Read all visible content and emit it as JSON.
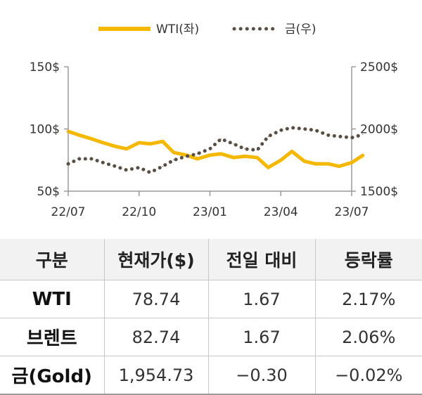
{
  "chart_data": {
    "type": "line",
    "legend": {
      "placement": "top-center",
      "entries": [
        {
          "label": "WTI(좌)",
          "color": "#f5b800",
          "style": "solid"
        },
        {
          "label": "금(우)",
          "color": "#5a4f44",
          "style": "dotted"
        }
      ]
    },
    "x_ticks": [
      "22/07",
      "22/10",
      "23/01",
      "23/04",
      "23/07"
    ],
    "y_left": {
      "ticks": [
        "150$",
        "100$",
        "50$"
      ],
      "range": [
        50,
        150
      ]
    },
    "y_right": {
      "ticks": [
        "2500$",
        "2000$",
        "1500$"
      ],
      "range": [
        1500,
        2500
      ]
    },
    "grid": false,
    "series": [
      {
        "name": "WTI(좌)",
        "axis": "left",
        "color": "#f5b800",
        "x": [
          "22/07/01",
          "22/07/15",
          "22/08/01",
          "22/08/15",
          "22/09/01",
          "22/09/15",
          "22/10/01",
          "22/10/15",
          "22/11/01",
          "22/11/15",
          "22/12/01",
          "22/12/15",
          "23/01/01",
          "23/01/15",
          "23/02/01",
          "23/02/15",
          "23/03/01",
          "23/03/15",
          "23/04/01",
          "23/04/15",
          "23/05/01",
          "23/05/15",
          "23/06/01",
          "23/06/15",
          "23/07/01",
          "23/07/15"
        ],
        "values": [
          98,
          95,
          92,
          89,
          86,
          84,
          89,
          88,
          90,
          81,
          79,
          76,
          79,
          80,
          77,
          78,
          77,
          69,
          75,
          82,
          74,
          72,
          72,
          70,
          73,
          78.74
        ]
      },
      {
        "name": "금(우)",
        "axis": "right",
        "color": "#5a4f44",
        "x": [
          "22/07/01",
          "22/07/15",
          "22/08/01",
          "22/08/15",
          "22/09/01",
          "22/09/15",
          "22/10/01",
          "22/10/15",
          "22/11/01",
          "22/11/15",
          "22/12/01",
          "22/12/15",
          "23/01/01",
          "23/01/15",
          "23/02/01",
          "23/02/15",
          "23/03/01",
          "23/03/15",
          "23/04/01",
          "23/04/15",
          "23/05/01",
          "23/05/15",
          "23/06/01",
          "23/06/15",
          "23/07/01",
          "23/07/15"
        ],
        "values": [
          1720,
          1760,
          1760,
          1730,
          1700,
          1670,
          1690,
          1650,
          1700,
          1750,
          1780,
          1800,
          1840,
          1920,
          1880,
          1840,
          1830,
          1940,
          1990,
          2010,
          2000,
          1990,
          1950,
          1940,
          1930,
          1954.73
        ]
      }
    ]
  },
  "table": {
    "headers": [
      "구분",
      "현재가($)",
      "전일 대비",
      "등락률"
    ],
    "rows": [
      {
        "label": "WTI",
        "price": "78.74",
        "change": "1.67",
        "rate": "2.17%"
      },
      {
        "label": "브렌트",
        "price": "82.74",
        "change": "1.67",
        "rate": "2.06%"
      },
      {
        "label": "금(Gold)",
        "price": "1,954.73",
        "change": "−0.30",
        "rate": "−0.02%"
      }
    ]
  }
}
